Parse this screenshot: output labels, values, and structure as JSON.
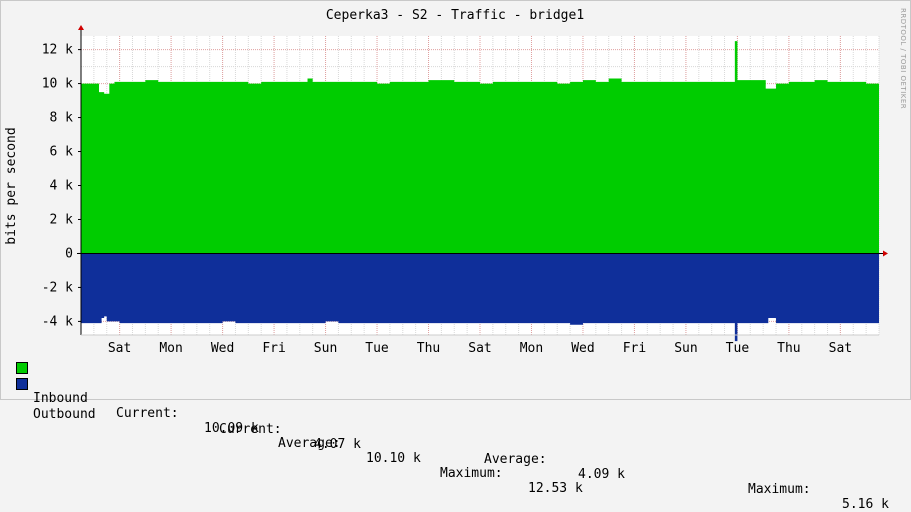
{
  "watermark": "RRDTOOL / TOBI OETIKER",
  "legend": {
    "inbound": {
      "name": "Inbound",
      "current_label": "Current:",
      "current": "10.09 k",
      "average_label": "Average:",
      "average": "10.10 k",
      "maximum_label": "Maximum:",
      "maximum": "12.53 k"
    },
    "outbound": {
      "name": "Outbound",
      "current_label": "Current:",
      "current": "4.07 k",
      "average_label": "Average:",
      "average": "4.09 k",
      "maximum_label": "Maximum:",
      "maximum": "5.16 k"
    }
  },
  "colors": {
    "inbound": "#00cc00",
    "outbound": "#0f2f9a",
    "grid_major": "#e0a0a0",
    "grid_minor": "#d8d8d8",
    "axis": "#000000",
    "arrow": "#d00000"
  },
  "chart_data": {
    "type": "area",
    "title": "Ceperka3 - S2 - Traffic - bridge1",
    "ylabel": "bits per second",
    "ylim": [
      -4.8,
      12.8
    ],
    "yticks": [
      -4,
      -2,
      0,
      2,
      4,
      6,
      8,
      10,
      12
    ],
    "ytick_labels": [
      "-4 k",
      "-2 k",
      "0",
      "2 k",
      "4 k",
      "6 k",
      "8 k",
      "10 k",
      "12 k"
    ],
    "x_tick_labels": [
      "Sat",
      "Mon",
      "Wed",
      "Fri",
      "Sun",
      "Tue",
      "Thu",
      "Sat",
      "Mon",
      "Wed",
      "Fri",
      "Sun",
      "Tue",
      "Thu",
      "Sat"
    ],
    "x_tick_positions_days": [
      1.5,
      3.5,
      5.5,
      7.5,
      9.5,
      11.5,
      13.5,
      15.5,
      17.5,
      19.5,
      21.5,
      23.5,
      25.5,
      27.5,
      29.5
    ],
    "x_range_days": [
      0,
      31
    ],
    "grid": true,
    "series": [
      {
        "name": "Inbound",
        "x_days": [
          0,
          0.5,
          0.7,
          0.9,
          1.1,
          1.3,
          1.5,
          2,
          2.5,
          3,
          3.5,
          4,
          4.5,
          5,
          5.5,
          6,
          6.5,
          7,
          7.5,
          8,
          8.5,
          8.8,
          9,
          9.5,
          10,
          10.5,
          11,
          11.5,
          12,
          12.5,
          13,
          13.5,
          14,
          14.5,
          15,
          15.5,
          16,
          16.5,
          17,
          17.5,
          18,
          18.5,
          19,
          19.5,
          20,
          20.5,
          21,
          21.5,
          22,
          22.5,
          23,
          23.5,
          24,
          24.5,
          25,
          25.3,
          25.4,
          25.5,
          26,
          26.2,
          26.4,
          26.6,
          26.8,
          27,
          27.5,
          28,
          28.5,
          29,
          29.5,
          30,
          30.5,
          31
        ],
        "values": [
          10.0,
          10.0,
          9.5,
          9.4,
          10.0,
          10.1,
          10.1,
          10.1,
          10.2,
          10.1,
          10.1,
          10.1,
          10.1,
          10.1,
          10.1,
          10.1,
          10.0,
          10.1,
          10.1,
          10.1,
          10.1,
          10.3,
          10.1,
          10.1,
          10.1,
          10.1,
          10.1,
          10.0,
          10.1,
          10.1,
          10.1,
          10.2,
          10.2,
          10.1,
          10.1,
          10.0,
          10.1,
          10.1,
          10.1,
          10.1,
          10.1,
          10.0,
          10.1,
          10.2,
          10.1,
          10.3,
          10.1,
          10.1,
          10.1,
          10.1,
          10.1,
          10.1,
          10.1,
          10.1,
          10.1,
          10.1,
          12.5,
          10.2,
          10.2,
          10.2,
          10.2,
          9.7,
          9.7,
          10.0,
          10.1,
          10.1,
          10.2,
          10.1,
          10.1,
          10.1,
          10.0,
          10.0
        ]
      },
      {
        "name": "Outbound",
        "x_days": [
          0,
          0.5,
          0.8,
          0.9,
          1.0,
          1.5,
          2,
          2.5,
          3,
          3.5,
          4,
          4.5,
          5,
          5.5,
          6,
          6.5,
          7,
          7.5,
          8,
          8.5,
          9,
          9.5,
          10,
          10.5,
          11,
          11.5,
          12,
          12.5,
          13,
          13.5,
          14,
          14.5,
          15,
          15.5,
          16,
          16.5,
          17,
          17.5,
          18,
          18.5,
          19,
          19.5,
          20,
          20.5,
          21,
          21.5,
          22,
          22.5,
          23,
          23.5,
          24,
          24.5,
          25,
          25.3,
          25.4,
          25.5,
          26,
          26.5,
          26.7,
          26.8,
          27,
          27.5,
          28,
          28.5,
          29,
          29.5,
          30,
          30.5,
          31
        ],
        "values": [
          -4.1,
          -4.1,
          -3.8,
          -3.7,
          -4.0,
          -4.1,
          -4.1,
          -4.1,
          -4.1,
          -4.1,
          -4.1,
          -4.1,
          -4.1,
          -4.0,
          -4.1,
          -4.1,
          -4.1,
          -4.1,
          -4.1,
          -4.1,
          -4.1,
          -4.0,
          -4.1,
          -4.1,
          -4.1,
          -4.1,
          -4.1,
          -4.1,
          -4.1,
          -4.1,
          -4.1,
          -4.1,
          -4.1,
          -4.1,
          -4.1,
          -4.1,
          -4.1,
          -4.1,
          -4.1,
          -4.1,
          -4.2,
          -4.1,
          -4.1,
          -4.1,
          -4.1,
          -4.1,
          -4.1,
          -4.1,
          -4.1,
          -4.1,
          -4.1,
          -4.1,
          -4.1,
          -4.1,
          -5.16,
          -4.1,
          -4.1,
          -4.1,
          -3.8,
          -3.8,
          -4.1,
          -4.1,
          -4.1,
          -4.1,
          -4.1,
          -4.1,
          -4.1,
          -4.1,
          -4.1
        ]
      }
    ]
  }
}
